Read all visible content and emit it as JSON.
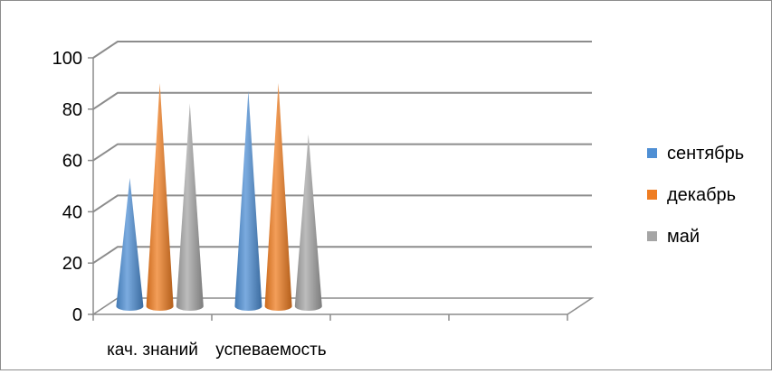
{
  "chart_data": {
    "type": "bar",
    "style": "3d-cone",
    "title": "",
    "xlabel": "",
    "ylabel": "",
    "ylim": [
      0,
      100
    ],
    "yticks": [
      0,
      20,
      40,
      60,
      80,
      100
    ],
    "grid": true,
    "legend_position": "right",
    "categories": [
      "кач. знаний",
      "успеваемость",
      "",
      ""
    ],
    "series": [
      {
        "name": "сентябрь",
        "color": "#4f8fd4",
        "values": [
          50,
          84,
          null,
          null
        ]
      },
      {
        "name": "декабрь",
        "color": "#ef7d22",
        "values": [
          87,
          87,
          null,
          null
        ]
      },
      {
        "name": "май",
        "color": "#a5a5a5",
        "values": [
          79,
          67,
          null,
          null
        ]
      }
    ]
  }
}
